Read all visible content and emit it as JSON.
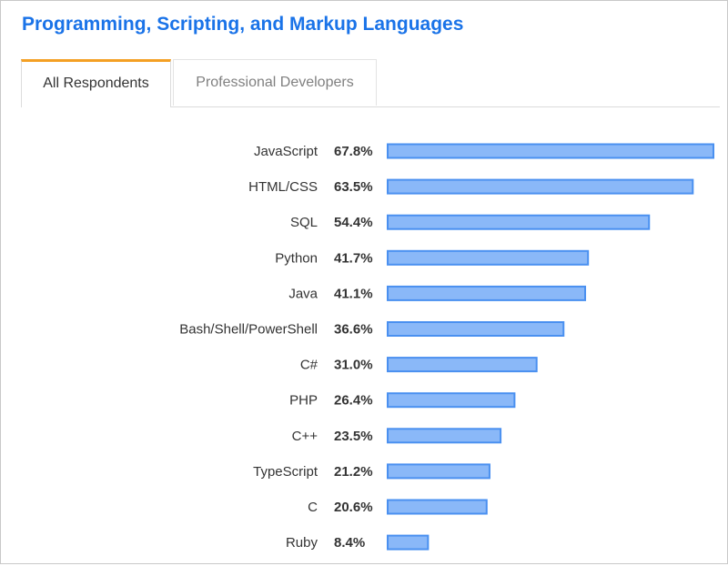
{
  "header": {
    "title": "Programming, Scripting, and Markup Languages"
  },
  "tabs": [
    {
      "label": "All Respondents",
      "active": true
    },
    {
      "label": "Professional Developers",
      "active": false
    }
  ],
  "colors": {
    "title": "#1a73e8",
    "tab_accent": "#f4a024",
    "bar_fill": "#8ab8f8",
    "bar_border": "#4a90f0"
  },
  "chart_data": {
    "type": "bar",
    "orientation": "horizontal",
    "categories": [
      "JavaScript",
      "HTML/CSS",
      "SQL",
      "Python",
      "Java",
      "Bash/Shell/PowerShell",
      "C#",
      "PHP",
      "C++",
      "TypeScript",
      "C",
      "Ruby"
    ],
    "values": [
      67.8,
      63.5,
      54.4,
      41.7,
      41.1,
      36.6,
      31.0,
      26.4,
      23.5,
      21.2,
      20.6,
      8.4
    ],
    "value_labels": [
      "67.8%",
      "63.5%",
      "54.4%",
      "41.7%",
      "41.1%",
      "36.6%",
      "31.0%",
      "26.4%",
      "23.5%",
      "21.2%",
      "20.6%",
      "8.4%"
    ],
    "unit": "%",
    "xlim": [
      0,
      67.8
    ],
    "grid": false,
    "legend": "none"
  }
}
